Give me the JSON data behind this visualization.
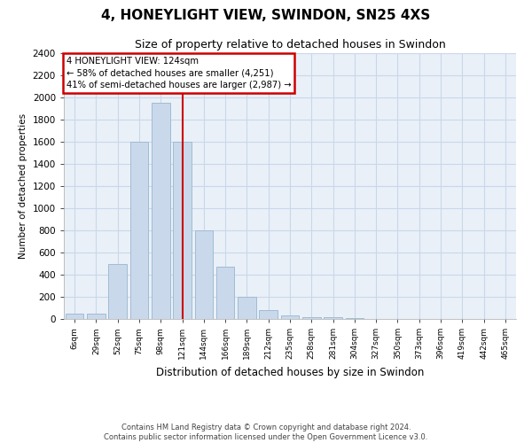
{
  "title": "4, HONEYLIGHT VIEW, SWINDON, SN25 4XS",
  "subtitle": "Size of property relative to detached houses in Swindon",
  "xlabel": "Distribution of detached houses by size in Swindon",
  "ylabel": "Number of detached properties",
  "footer_line1": "Contains HM Land Registry data © Crown copyright and database right 2024.",
  "footer_line2": "Contains public sector information licensed under the Open Government Licence v3.0.",
  "bar_color": "#c9d9eb",
  "bar_edge_color": "#a0bcd4",
  "grid_color": "#c8d8ea",
  "annotation_box_color": "#cc0000",
  "vline_color": "#cc0000",
  "categories": [
    "6sqm",
    "29sqm",
    "52sqm",
    "75sqm",
    "98sqm",
    "121sqm",
    "144sqm",
    "166sqm",
    "189sqm",
    "212sqm",
    "235sqm",
    "258sqm",
    "281sqm",
    "304sqm",
    "327sqm",
    "350sqm",
    "373sqm",
    "396sqm",
    "419sqm",
    "442sqm",
    "465sqm"
  ],
  "values": [
    50,
    50,
    500,
    1600,
    1950,
    1600,
    800,
    475,
    200,
    80,
    30,
    20,
    15,
    5,
    2,
    2,
    2,
    2,
    2,
    2,
    2
  ],
  "vline_index": 5,
  "annotation_text": "4 HONEYLIGHT VIEW: 124sqm\n← 58% of detached houses are smaller (4,251)\n41% of semi-detached houses are larger (2,987) →",
  "ylim": [
    0,
    2400
  ],
  "yticks": [
    0,
    200,
    400,
    600,
    800,
    1000,
    1200,
    1400,
    1600,
    1800,
    2000,
    2200,
    2400
  ],
  "background_color": "#ffffff",
  "plot_bg_color": "#eaf0f8"
}
